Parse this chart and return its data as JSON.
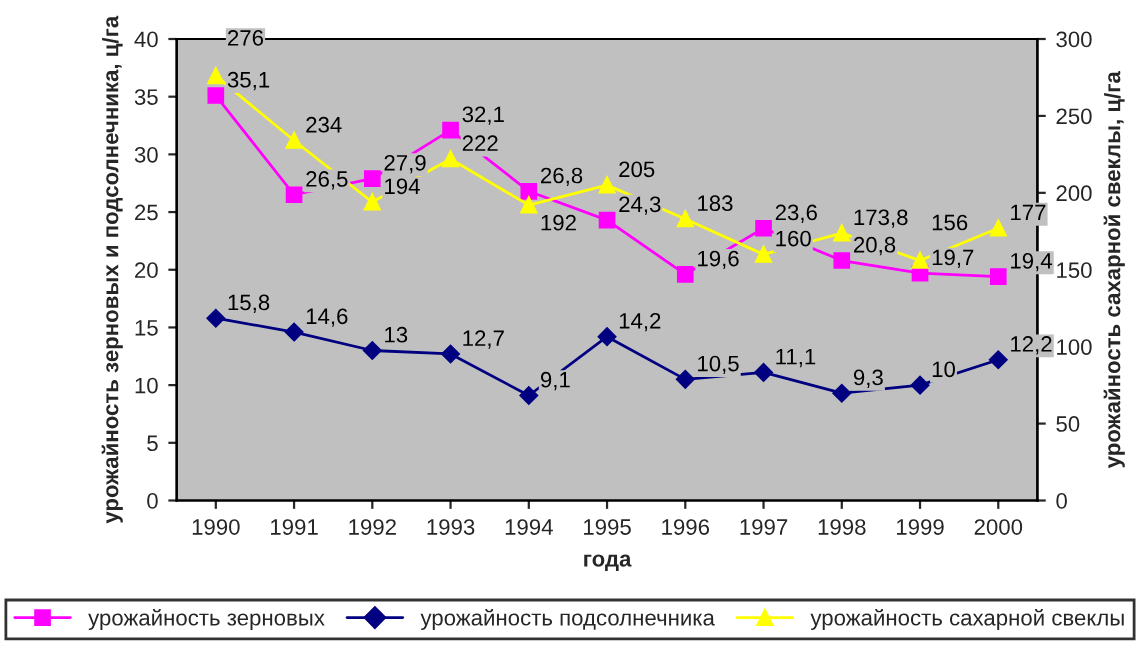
{
  "chart_data": {
    "type": "line",
    "xlabel": "года",
    "ylabel": "урожайность зерновых и подсолнечника, ц/га",
    "y2label": "урожайность сахарной свеклы, ц/га",
    "categories": [
      "1990",
      "1991",
      "1992",
      "1993",
      "1994",
      "1995",
      "1996",
      "1997",
      "1998",
      "1999",
      "2000"
    ],
    "series": [
      {
        "name": "урожайность зерновых",
        "color": "#ff00ff",
        "marker": "square",
        "values": [
          35.1,
          26.5,
          27.9,
          32.1,
          26.8,
          24.3,
          19.6,
          23.6,
          20.8,
          19.7,
          19.4
        ],
        "value_labels": [
          "35,1",
          "26,5",
          "27,9",
          "32,1",
          "26,8",
          "24,3",
          "19,6",
          "23,6",
          "20,8",
          "19,7",
          "19,4"
        ]
      },
      {
        "name": "урожайность подсолнечника",
        "color": "#000080",
        "marker": "diamond",
        "values": [
          15.8,
          14.6,
          13,
          12.7,
          9.1,
          14.2,
          10.5,
          11.1,
          9.3,
          10,
          12.2
        ],
        "value_labels": [
          "15,8",
          "14,6",
          "13",
          "12,7",
          "9,1",
          "14,2",
          "10,5",
          "11,1",
          "9,3",
          "10",
          "12,2"
        ]
      },
      {
        "name": "урожайность сахарной свеклы",
        "color": "#ffff00",
        "marker": "triangle",
        "axis": "y2",
        "values": [
          276,
          234,
          194,
          222,
          192,
          205,
          183,
          160,
          173.8,
          156,
          177
        ],
        "value_labels": [
          "276",
          "234",
          "194",
          "222",
          "192",
          "205",
          "183",
          "160",
          "173,8",
          "156",
          "177"
        ]
      }
    ],
    "ylim": [
      0,
      40
    ],
    "yticks": [
      0,
      5,
      10,
      15,
      20,
      25,
      30,
      35,
      40
    ],
    "y2lim": [
      0,
      300
    ],
    "y2ticks": [
      0,
      50,
      100,
      150,
      200,
      250,
      300
    ],
    "grid": false,
    "legend": "bottom"
  }
}
